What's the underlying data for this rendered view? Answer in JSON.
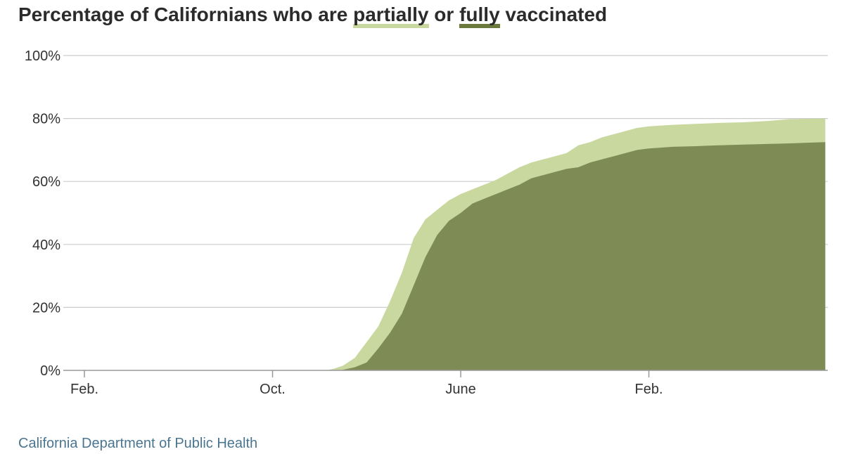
{
  "title": {
    "prefix": "Percentage of Californians who are ",
    "partial_word": "partially",
    "middle": " or ",
    "full_word": "fully",
    "suffix": " vaccinated"
  },
  "source": "California Department of Public Health",
  "colors": {
    "partial": "#c9d89e",
    "full": "#7f8b55",
    "grid": "#cccccc",
    "axis": "#999999",
    "title_key_full": "#6b7a3c"
  },
  "chart_data": {
    "type": "area",
    "title": "Percentage of Californians who are partially or fully vaccinated",
    "xlabel": "",
    "ylabel": "",
    "x_unit": "month",
    "x_ticks": [
      {
        "label": "Feb.",
        "month_index": 0
      },
      {
        "label": "Oct.",
        "month_index": 8
      },
      {
        "label": "June",
        "month_index": 16
      },
      {
        "label": "Feb.",
        "month_index": 24
      }
    ],
    "xlim": [
      -0.1,
      31.5
    ],
    "ylim": [
      0,
      100
    ],
    "y_ticks": [
      0,
      20,
      40,
      60,
      80,
      100
    ],
    "y_tick_labels": [
      "0%",
      "20%",
      "40%",
      "60%",
      "80%",
      "100%"
    ],
    "grid": true,
    "series": [
      {
        "name": "partially",
        "x": [
          0,
          10.3,
          10.6,
          11.0,
          11.5,
          12.0,
          12.5,
          13.0,
          13.5,
          14.0,
          14.5,
          15.0,
          15.5,
          16.0,
          16.5,
          17.0,
          17.5,
          18.0,
          18.5,
          19.0,
          19.5,
          20.0,
          20.5,
          21.0,
          21.5,
          22.0,
          22.5,
          23.0,
          23.5,
          24.0,
          25.0,
          26.0,
          27.0,
          28.0,
          29.0,
          30.0,
          31.5
        ],
        "values": [
          0,
          0,
          0.5,
          1.5,
          4,
          9,
          14,
          22,
          31,
          42,
          48,
          51,
          54,
          56,
          57.5,
          59,
          60.5,
          62.5,
          64.5,
          66,
          67,
          68,
          69,
          71.5,
          72.5,
          74,
          75,
          76,
          77,
          77.5,
          78,
          78.3,
          78.6,
          78.8,
          79.2,
          79.8,
          80
        ]
      },
      {
        "name": "fully",
        "x": [
          0,
          10.8,
          11.0,
          11.5,
          12.0,
          12.5,
          13.0,
          13.5,
          14.0,
          14.5,
          15.0,
          15.5,
          16.0,
          16.5,
          17.0,
          17.5,
          18.0,
          18.5,
          19.0,
          19.5,
          20.0,
          20.5,
          21.0,
          21.5,
          22.0,
          22.5,
          23.0,
          23.5,
          24.0,
          25.0,
          26.0,
          27.0,
          28.0,
          29.0,
          30.0,
          31.5
        ],
        "values": [
          0,
          0,
          0.2,
          1,
          2.5,
          7,
          12,
          18,
          27,
          36,
          43,
          47.5,
          50,
          53,
          54.5,
          56,
          57.5,
          59,
          61,
          62,
          63,
          64,
          64.5,
          66,
          67,
          68,
          69,
          70,
          70.5,
          71,
          71.2,
          71.5,
          71.7,
          71.9,
          72.1,
          72.5
        ]
      }
    ]
  }
}
